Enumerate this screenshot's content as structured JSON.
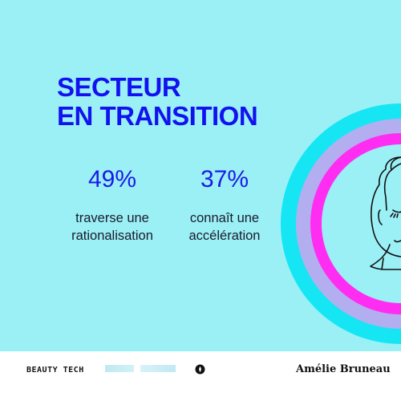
{
  "title": {
    "line1": "SECTEUR",
    "line2": "EN TRANSITION"
  },
  "stats": [
    {
      "value": "49%",
      "label_line1": "traverse une",
      "label_line2": "rationalisation"
    },
    {
      "value": "37%",
      "label_line1": "connaît une",
      "label_line2": "accélération"
    }
  ],
  "footer": {
    "brand": "BEAUTY TECH",
    "author": "Amélie Bruneau"
  },
  "colors": {
    "background": "#9bf0f6",
    "accent_blue": "#1212f0",
    "ring_cyan": "#16e6f4",
    "ring_lavender": "#b3aef0",
    "ring_magenta": "#ff2df2"
  },
  "icons": {
    "illustration": "woman-face-illustration",
    "logo": "circle-logo-icon"
  }
}
